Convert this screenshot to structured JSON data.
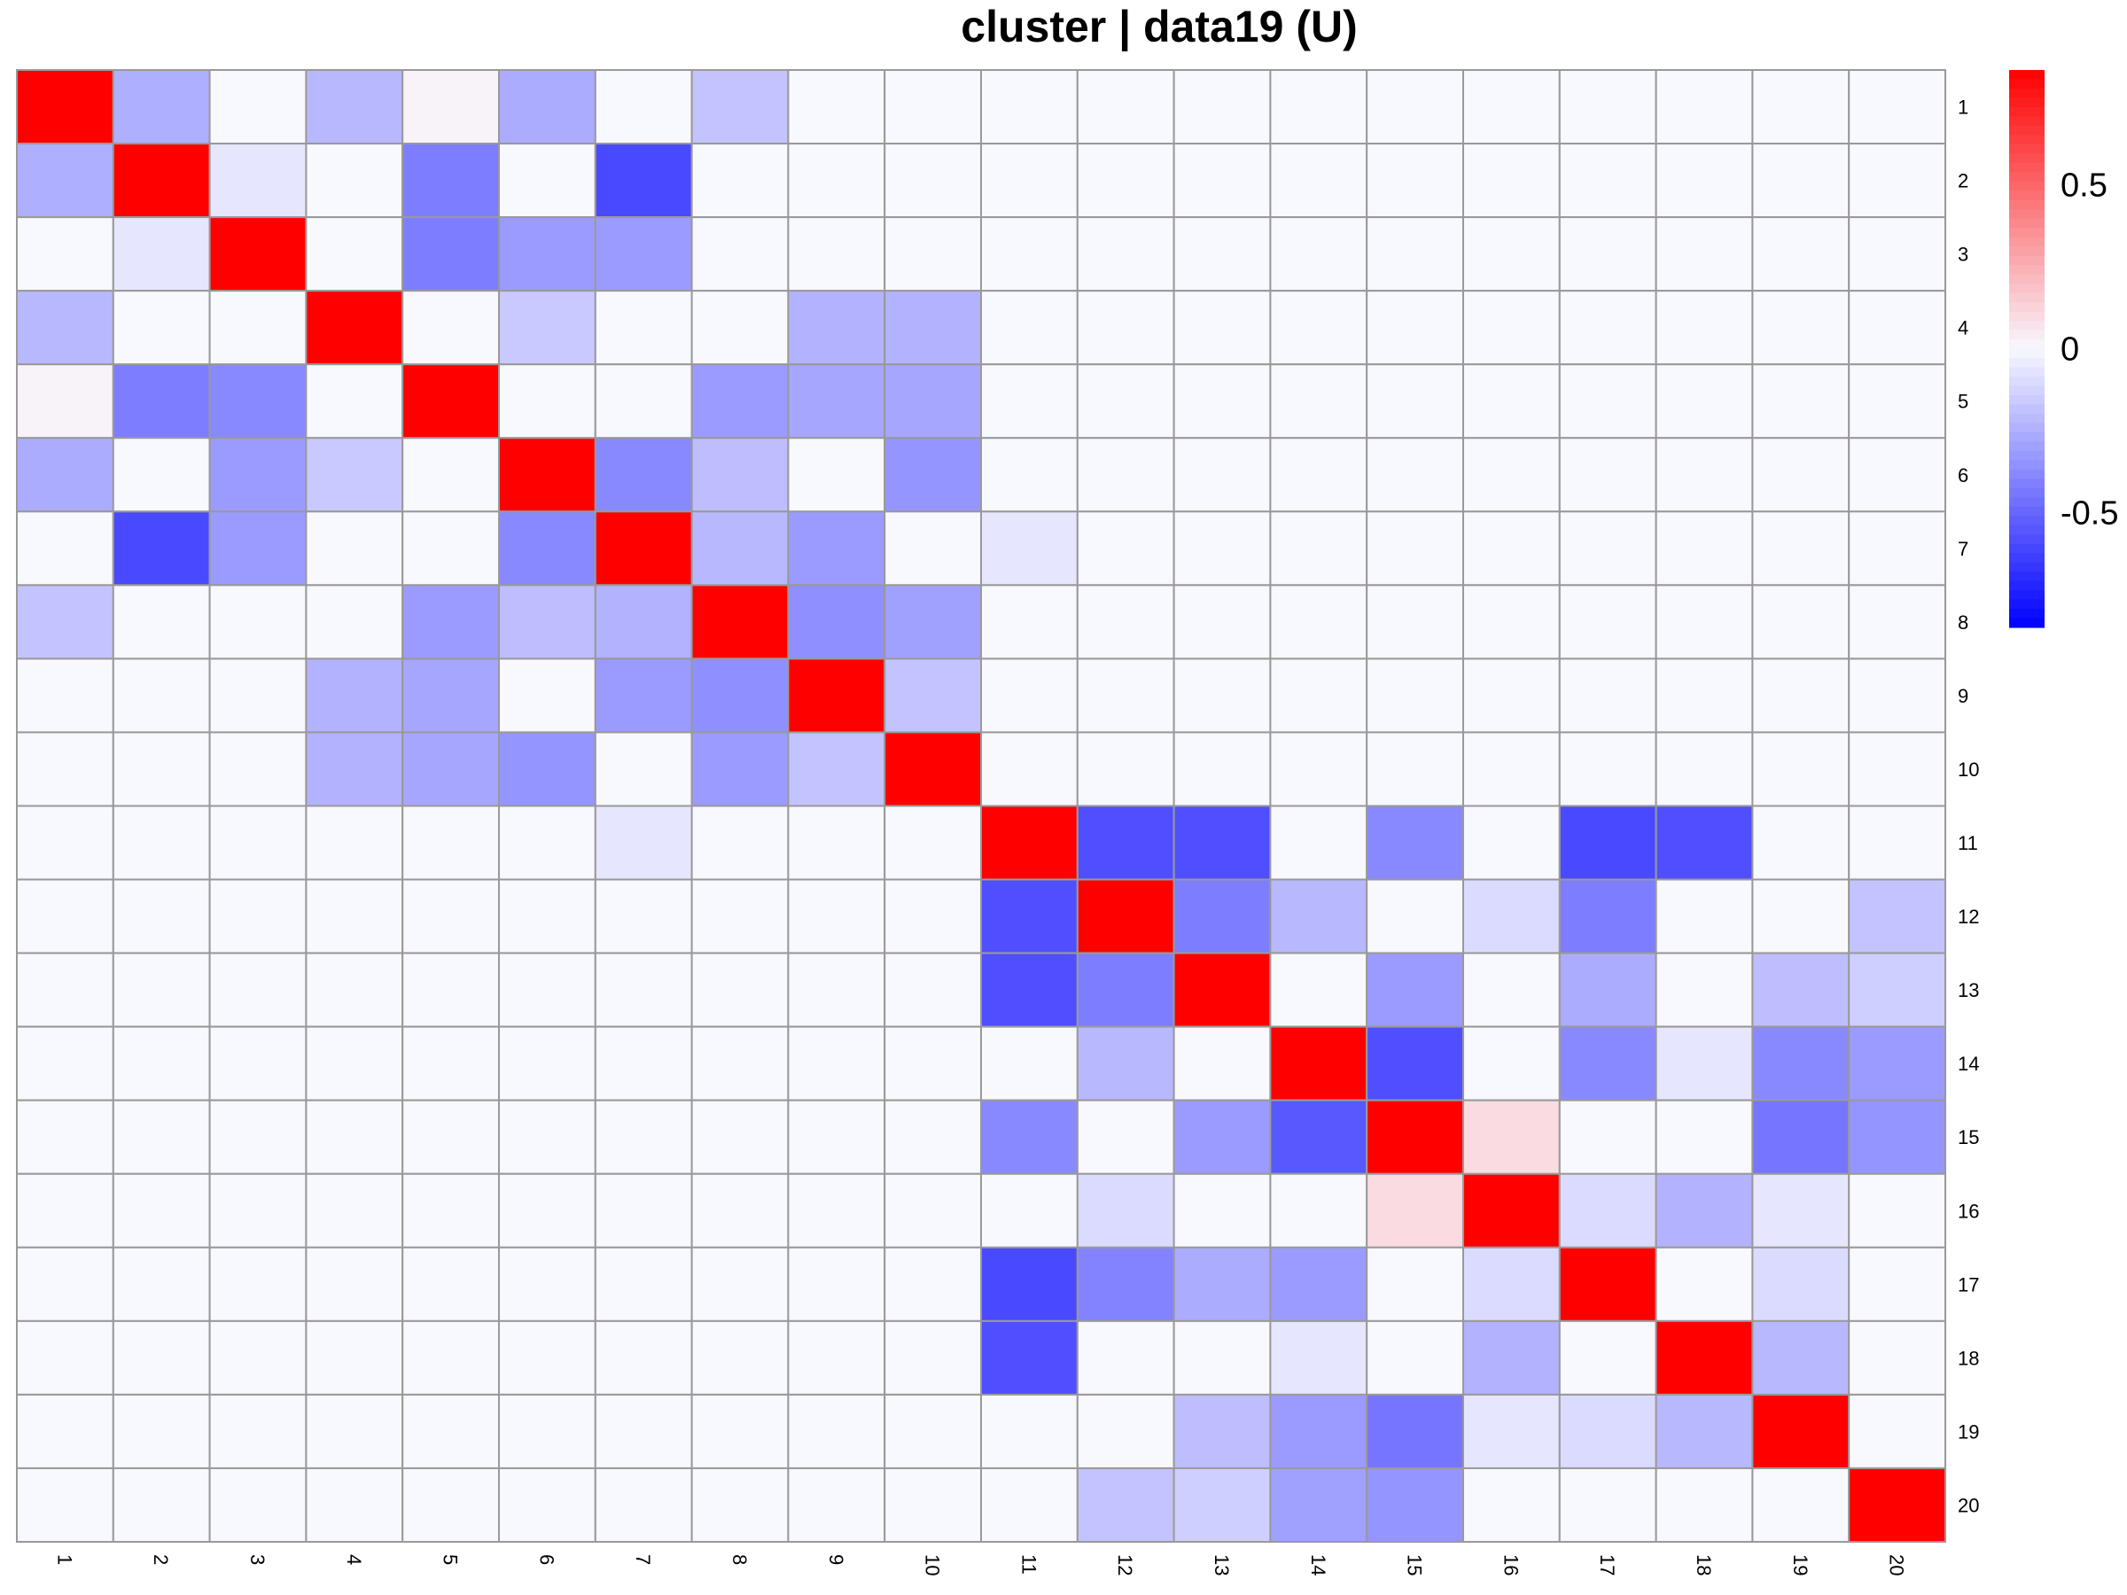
{
  "chart_data": {
    "type": "heatmap",
    "title": "cluster | data19 (U)",
    "rows": [
      "1",
      "2",
      "3",
      "4",
      "5",
      "6",
      "7",
      "8",
      "9",
      "10",
      "11",
      "12",
      "13",
      "14",
      "15",
      "16",
      "17",
      "18",
      "19",
      "20"
    ],
    "cols": [
      "1",
      "2",
      "3",
      "4",
      "5",
      "6",
      "7",
      "8",
      "9",
      "10",
      "11",
      "12",
      "13",
      "14",
      "15",
      "16",
      "17",
      "18",
      "19",
      "20"
    ],
    "values": [
      [
        0.85,
        -0.25,
        0,
        -0.22,
        0.02,
        -0.26,
        0,
        -0.18,
        0,
        0,
        0,
        0,
        0,
        0,
        0,
        0,
        0,
        0,
        0,
        0
      ],
      [
        -0.25,
        0.85,
        -0.06,
        0,
        -0.42,
        0,
        -0.6,
        0,
        0,
        0,
        0,
        0,
        0,
        0,
        0,
        0,
        0,
        0,
        0,
        0
      ],
      [
        0,
        -0.06,
        0.85,
        0,
        -0.42,
        -0.32,
        -0.32,
        0,
        0,
        0,
        0,
        0,
        0,
        0,
        0,
        0,
        0,
        0,
        0,
        0
      ],
      [
        -0.22,
        0,
        0,
        0.85,
        0,
        -0.16,
        0,
        0,
        -0.24,
        -0.24,
        0,
        0,
        0,
        0,
        0,
        0,
        0,
        0,
        0,
        0
      ],
      [
        0.02,
        -0.42,
        -0.38,
        0,
        0.85,
        0,
        0,
        -0.32,
        -0.28,
        -0.28,
        0,
        0,
        0,
        0,
        0,
        0,
        0,
        0,
        0,
        0
      ],
      [
        -0.26,
        0,
        -0.32,
        -0.16,
        0,
        0.85,
        -0.38,
        -0.2,
        0,
        -0.34,
        0,
        0,
        0,
        0,
        0,
        0,
        0,
        0,
        0,
        0
      ],
      [
        0,
        -0.6,
        -0.32,
        0,
        0,
        -0.38,
        0.85,
        -0.22,
        -0.32,
        0,
        -0.06,
        0,
        0,
        0,
        0,
        0,
        0,
        0,
        0,
        0
      ],
      [
        -0.18,
        0,
        0,
        0,
        -0.32,
        -0.2,
        -0.24,
        0.85,
        -0.36,
        -0.3,
        0,
        0,
        0,
        0,
        0,
        0,
        0,
        0,
        0,
        0
      ],
      [
        0,
        0,
        0,
        -0.24,
        -0.28,
        0,
        -0.32,
        -0.36,
        0.85,
        -0.18,
        0,
        0,
        0,
        0,
        0,
        0,
        0,
        0,
        0,
        0
      ],
      [
        0,
        0,
        0,
        -0.24,
        -0.28,
        -0.34,
        0,
        -0.32,
        -0.18,
        0.85,
        0,
        0,
        0,
        0,
        0,
        0,
        0,
        0,
        0,
        0
      ],
      [
        0,
        0,
        0,
        0,
        0,
        0,
        -0.06,
        0,
        0,
        0,
        0.85,
        -0.58,
        -0.58,
        0,
        -0.38,
        0,
        -0.6,
        -0.58,
        0,
        0
      ],
      [
        0,
        0,
        0,
        0,
        0,
        0,
        0,
        0,
        0,
        0,
        -0.58,
        0.85,
        -0.42,
        -0.22,
        0,
        -0.1,
        -0.42,
        0,
        0,
        -0.18
      ],
      [
        0,
        0,
        0,
        0,
        0,
        0,
        0,
        0,
        0,
        0,
        -0.58,
        -0.42,
        0.85,
        0,
        -0.32,
        0,
        -0.26,
        0,
        -0.2,
        -0.14
      ],
      [
        0,
        0,
        0,
        0,
        0,
        0,
        0,
        0,
        0,
        0,
        0,
        -0.22,
        0,
        0.85,
        -0.58,
        0,
        -0.38,
        -0.06,
        -0.38,
        -0.32
      ],
      [
        0,
        0,
        0,
        0,
        0,
        0,
        0,
        0,
        0,
        0,
        -0.38,
        0,
        -0.32,
        -0.55,
        0.85,
        0.1,
        0,
        0,
        -0.45,
        -0.34
      ],
      [
        0,
        0,
        0,
        0,
        0,
        0,
        0,
        0,
        0,
        0,
        0,
        -0.1,
        0,
        0,
        0.1,
        0.85,
        -0.1,
        -0.24,
        -0.06,
        0
      ],
      [
        0,
        0,
        0,
        0,
        0,
        0,
        0,
        0,
        0,
        0,
        -0.6,
        -0.4,
        -0.26,
        -0.32,
        0,
        -0.1,
        0.85,
        0,
        -0.1,
        0
      ],
      [
        0,
        0,
        0,
        0,
        0,
        0,
        0,
        0,
        0,
        0,
        -0.58,
        0,
        0,
        -0.06,
        0,
        -0.24,
        0,
        0.85,
        -0.22,
        0
      ],
      [
        0,
        0,
        0,
        0,
        0,
        0,
        0,
        0,
        0,
        0,
        0,
        0,
        -0.2,
        -0.32,
        -0.45,
        -0.06,
        -0.1,
        -0.22,
        0.85,
        0
      ],
      [
        0,
        0,
        0,
        0,
        0,
        0,
        0,
        0,
        0,
        0,
        0,
        -0.18,
        -0.14,
        -0.3,
        -0.34,
        0,
        0,
        0,
        0,
        0.85
      ]
    ],
    "color_scale": {
      "low": "#0000ff",
      "mid": "#f8f8ff",
      "high": "#ff0000",
      "range": [
        -0.85,
        0.85
      ]
    },
    "legend": {
      "position": "right",
      "ticks": [
        "0.5",
        "0",
        "-0.5"
      ],
      "tick_values": [
        0.5,
        0,
        -0.5
      ]
    },
    "grid": true,
    "grid_color": "#999999"
  }
}
